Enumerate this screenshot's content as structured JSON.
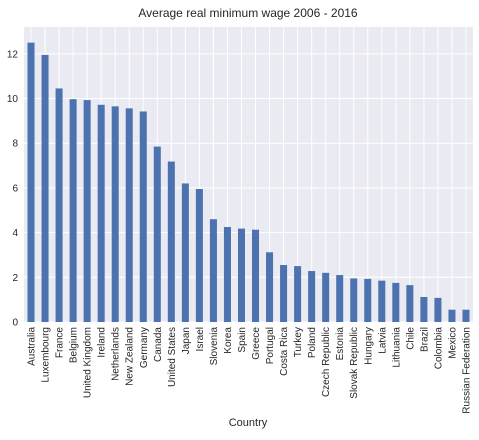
{
  "chart_data": {
    "type": "bar",
    "title": "Average real minimum wage 2006 - 2016",
    "xlabel": "Country",
    "ylabel": "",
    "ylim": [
      0,
      13.2
    ],
    "yticks": [
      0,
      2,
      4,
      6,
      8,
      10,
      12
    ],
    "grid": true,
    "legend": "none",
    "bar_color": "#4c72b0",
    "plot_bg": "#eaeaf2",
    "categories": [
      "Australia",
      "Luxembourg",
      "France",
      "Belgium",
      "United Kingdom",
      "Ireland",
      "Netherlands",
      "New Zealand",
      "Germany",
      "Canada",
      "United States",
      "Japan",
      "Israel",
      "Slovenia",
      "Korea",
      "Spain",
      "Greece",
      "Portugal",
      "Costa Rica",
      "Turkey",
      "Poland",
      "Czech Republic",
      "Estonia",
      "Slovak Republic",
      "Hungary",
      "Latvia",
      "Lithuania",
      "Chile",
      "Brazil",
      "Colombia",
      "Mexico",
      "Russian Federation"
    ],
    "values": [
      12.5,
      11.95,
      10.45,
      9.97,
      9.93,
      9.72,
      9.65,
      9.56,
      9.42,
      7.85,
      7.18,
      6.2,
      5.95,
      4.6,
      4.25,
      4.18,
      4.13,
      3.12,
      2.55,
      2.5,
      2.28,
      2.2,
      2.1,
      1.95,
      1.93,
      1.85,
      1.75,
      1.65,
      1.12,
      1.08,
      0.55,
      0.55
    ]
  }
}
